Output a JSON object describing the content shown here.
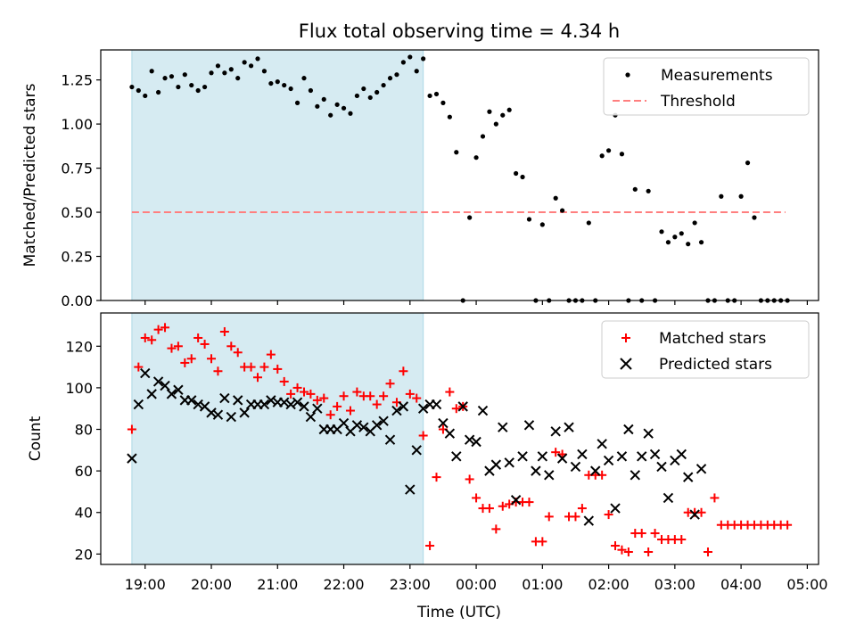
{
  "title": "Flux total observing time = 4.34 h",
  "xlabel": "Time (UTC)",
  "xticks": [
    "19:00",
    "20:00",
    "21:00",
    "22:00",
    "23:00",
    "00:00",
    "01:00",
    "02:00",
    "03:00",
    "04:00",
    "05:00"
  ],
  "colors": {
    "threshold": "#ff7f7f",
    "shade": "#add8e6",
    "matched": "#ff0000",
    "predicted": "#000000",
    "measurement": "#000000"
  },
  "chart_data": [
    {
      "type": "scatter",
      "ylabel": "Matched/Predicted stars",
      "xlim_hours": [
        18.33,
        5.17
      ],
      "ylim": [
        0,
        1.42
      ],
      "yticks": [
        "0.00",
        "0.25",
        "0.50",
        "0.75",
        "1.00",
        "1.25"
      ],
      "shaded_interval_hours": [
        18.8,
        23.2
      ],
      "threshold": {
        "name": "Threshold",
        "value": 0.5,
        "x_range_hours": [
          18.8,
          4.67
        ]
      },
      "legend": {
        "placement": "top-right",
        "entries": [
          "Measurements",
          "Threshold"
        ]
      },
      "series": [
        {
          "name": "Measurements",
          "x_hours": [
            18.8,
            18.9,
            19.0,
            19.1,
            19.2,
            19.3,
            19.4,
            19.5,
            19.6,
            19.7,
            19.8,
            19.9,
            20.0,
            20.1,
            20.2,
            20.3,
            20.4,
            20.5,
            20.6,
            20.7,
            20.8,
            20.9,
            21.0,
            21.1,
            21.2,
            21.3,
            21.4,
            21.5,
            21.6,
            21.7,
            21.8,
            21.9,
            22.0,
            22.1,
            22.2,
            22.3,
            22.4,
            22.5,
            22.6,
            22.7,
            22.8,
            22.9,
            23.0,
            23.1,
            23.2,
            23.3,
            23.4,
            23.5,
            23.6,
            23.7,
            23.8,
            23.9,
            24.0,
            24.1,
            24.2,
            24.3,
            24.4,
            24.5,
            24.6,
            24.7,
            24.8,
            24.9,
            25.0,
            25.1,
            25.2,
            25.3,
            25.4,
            25.5,
            25.6,
            25.7,
            25.8,
            25.9,
            26.0,
            26.1,
            26.2,
            26.3,
            26.4,
            26.5,
            26.6,
            26.7,
            26.8,
            26.9,
            27.0,
            27.1,
            27.2,
            27.3,
            27.4,
            27.5,
            27.6,
            27.7,
            27.8,
            27.9,
            28.0,
            28.1,
            28.2,
            28.3,
            28.4,
            28.5,
            28.6,
            28.7
          ],
          "y": [
            1.21,
            1.19,
            1.16,
            1.3,
            1.18,
            1.26,
            1.27,
            1.21,
            1.28,
            1.22,
            1.19,
            1.21,
            1.29,
            1.33,
            1.29,
            1.31,
            1.26,
            1.35,
            1.33,
            1.37,
            1.3,
            1.23,
            1.24,
            1.22,
            1.2,
            1.12,
            1.26,
            1.19,
            1.1,
            1.14,
            1.05,
            1.11,
            1.09,
            1.06,
            1.16,
            1.2,
            1.15,
            1.18,
            1.22,
            1.26,
            1.28,
            1.35,
            1.38,
            1.3,
            1.37,
            1.16,
            1.17,
            1.12,
            1.04,
            0.84,
            0.0,
            0.47,
            0.81,
            0.93,
            1.07,
            1.0,
            1.05,
            1.08,
            0.72,
            0.7,
            0.46,
            0.0,
            0.43,
            0.0,
            0.58,
            0.51,
            0.0,
            0.0,
            0.0,
            0.44,
            0.0,
            0.82,
            0.85,
            1.05,
            0.83,
            0.0,
            0.63,
            0.0,
            0.62,
            0.0,
            0.39,
            0.33,
            0.36,
            0.38,
            0.32,
            0.44,
            0.33,
            0.0,
            0.0,
            0.59,
            0.0,
            0.0,
            0.59,
            0.78,
            0.47,
            0.0,
            0.0,
            0.0,
            0.0,
            0.0
          ]
        }
      ]
    },
    {
      "type": "scatter",
      "ylabel": "Count",
      "xlim_hours": [
        18.33,
        5.17
      ],
      "ylim": [
        15,
        136
      ],
      "yticks": [
        "20",
        "40",
        "60",
        "80",
        "100",
        "120"
      ],
      "shaded_interval_hours": [
        18.8,
        23.2
      ],
      "legend": {
        "placement": "top-right",
        "entries": [
          "Matched stars",
          "Predicted stars"
        ]
      },
      "series": [
        {
          "name": "Matched stars",
          "marker": "+",
          "x_hours": [
            18.8,
            18.9,
            19.0,
            19.1,
            19.2,
            19.3,
            19.4,
            19.5,
            19.6,
            19.7,
            19.8,
            19.9,
            20.0,
            20.1,
            20.2,
            20.3,
            20.4,
            20.5,
            20.6,
            20.7,
            20.8,
            20.9,
            21.0,
            21.1,
            21.2,
            21.3,
            21.4,
            21.5,
            21.6,
            21.7,
            21.8,
            21.9,
            22.0,
            22.1,
            22.2,
            22.3,
            22.4,
            22.5,
            22.6,
            22.7,
            22.8,
            22.9,
            23.0,
            23.1,
            23.2,
            23.3,
            23.4,
            23.5,
            23.6,
            23.7,
            23.8,
            23.9,
            24.0,
            24.1,
            24.2,
            24.3,
            24.4,
            24.5,
            24.6,
            24.7,
            24.8,
            24.9,
            25.0,
            25.1,
            25.2,
            25.3,
            25.4,
            25.5,
            25.6,
            25.7,
            25.8,
            25.9,
            26.0,
            26.1,
            26.2,
            26.3,
            26.4,
            26.5,
            26.6,
            26.7,
            26.8,
            26.9,
            27.0,
            27.1,
            27.2,
            27.3,
            27.4,
            27.5,
            27.6,
            27.7,
            27.8,
            27.9,
            28.0,
            28.1,
            28.2,
            28.3,
            28.4,
            28.5,
            28.6,
            28.7
          ],
          "y": [
            80,
            110,
            124,
            123,
            128,
            129,
            119,
            120,
            112,
            114,
            124,
            121,
            114,
            108,
            127,
            120,
            117,
            110,
            110,
            105,
            110,
            116,
            109,
            103,
            97,
            100,
            98,
            97,
            94,
            95,
            87,
            91,
            96,
            89,
            98,
            96,
            96,
            92,
            96,
            102,
            93,
            108,
            97,
            95,
            77,
            24,
            57,
            80,
            98,
            90,
            91,
            56,
            47,
            42,
            42,
            32,
            43,
            44,
            45,
            45,
            45,
            26,
            26,
            38,
            69,
            68,
            38,
            38,
            42,
            58,
            58,
            58,
            39,
            24,
            22,
            21,
            30,
            30,
            21,
            30,
            27,
            27,
            27,
            27,
            40,
            40,
            40,
            21,
            47,
            34,
            34,
            34,
            34,
            34,
            34,
            34,
            34,
            34,
            34,
            34
          ]
        },
        {
          "name": "Predicted stars",
          "marker": "x",
          "x_hours": [
            18.8,
            18.9,
            19.0,
            19.1,
            19.2,
            19.3,
            19.4,
            19.5,
            19.6,
            19.7,
            19.8,
            19.9,
            20.0,
            20.1,
            20.2,
            20.3,
            20.4,
            20.5,
            20.6,
            20.7,
            20.8,
            20.9,
            21.0,
            21.1,
            21.2,
            21.3,
            21.4,
            21.5,
            21.6,
            21.7,
            21.8,
            21.9,
            22.0,
            22.1,
            22.2,
            22.3,
            22.4,
            22.5,
            22.6,
            22.7,
            22.8,
            22.9,
            23.0,
            23.1,
            23.2,
            23.3,
            23.4,
            23.5,
            23.6,
            23.7,
            23.8,
            23.9,
            24.0,
            24.1,
            24.2,
            24.3,
            24.4,
            24.5,
            24.6,
            24.7,
            24.8,
            24.9,
            25.0,
            25.1,
            25.2,
            25.3,
            25.4,
            25.5,
            25.6,
            25.7,
            25.8,
            25.9,
            26.0,
            26.1,
            26.2,
            26.3,
            26.4,
            26.5,
            26.6,
            26.7,
            26.8,
            26.9,
            27.0,
            27.1,
            27.2,
            27.3,
            27.4
          ],
          "y": [
            66,
            92,
            107,
            97,
            103,
            101,
            97,
            99,
            94,
            94,
            92,
            91,
            88,
            87,
            95,
            86,
            94,
            88,
            92,
            92,
            92,
            94,
            93,
            93,
            92,
            93,
            91,
            86,
            90,
            80,
            80,
            80,
            83,
            79,
            82,
            81,
            79,
            82,
            84,
            75,
            89,
            91,
            51,
            70,
            90,
            92,
            92,
            83,
            78,
            67,
            91,
            75,
            74,
            89,
            60,
            63,
            81,
            64,
            46,
            67,
            82,
            60,
            67,
            58,
            79,
            66,
            81,
            62,
            68,
            36,
            60,
            73,
            65,
            42,
            67,
            80,
            58,
            67,
            78,
            68,
            62,
            47,
            65,
            68,
            57,
            39,
            61
          ]
        }
      ]
    }
  ]
}
